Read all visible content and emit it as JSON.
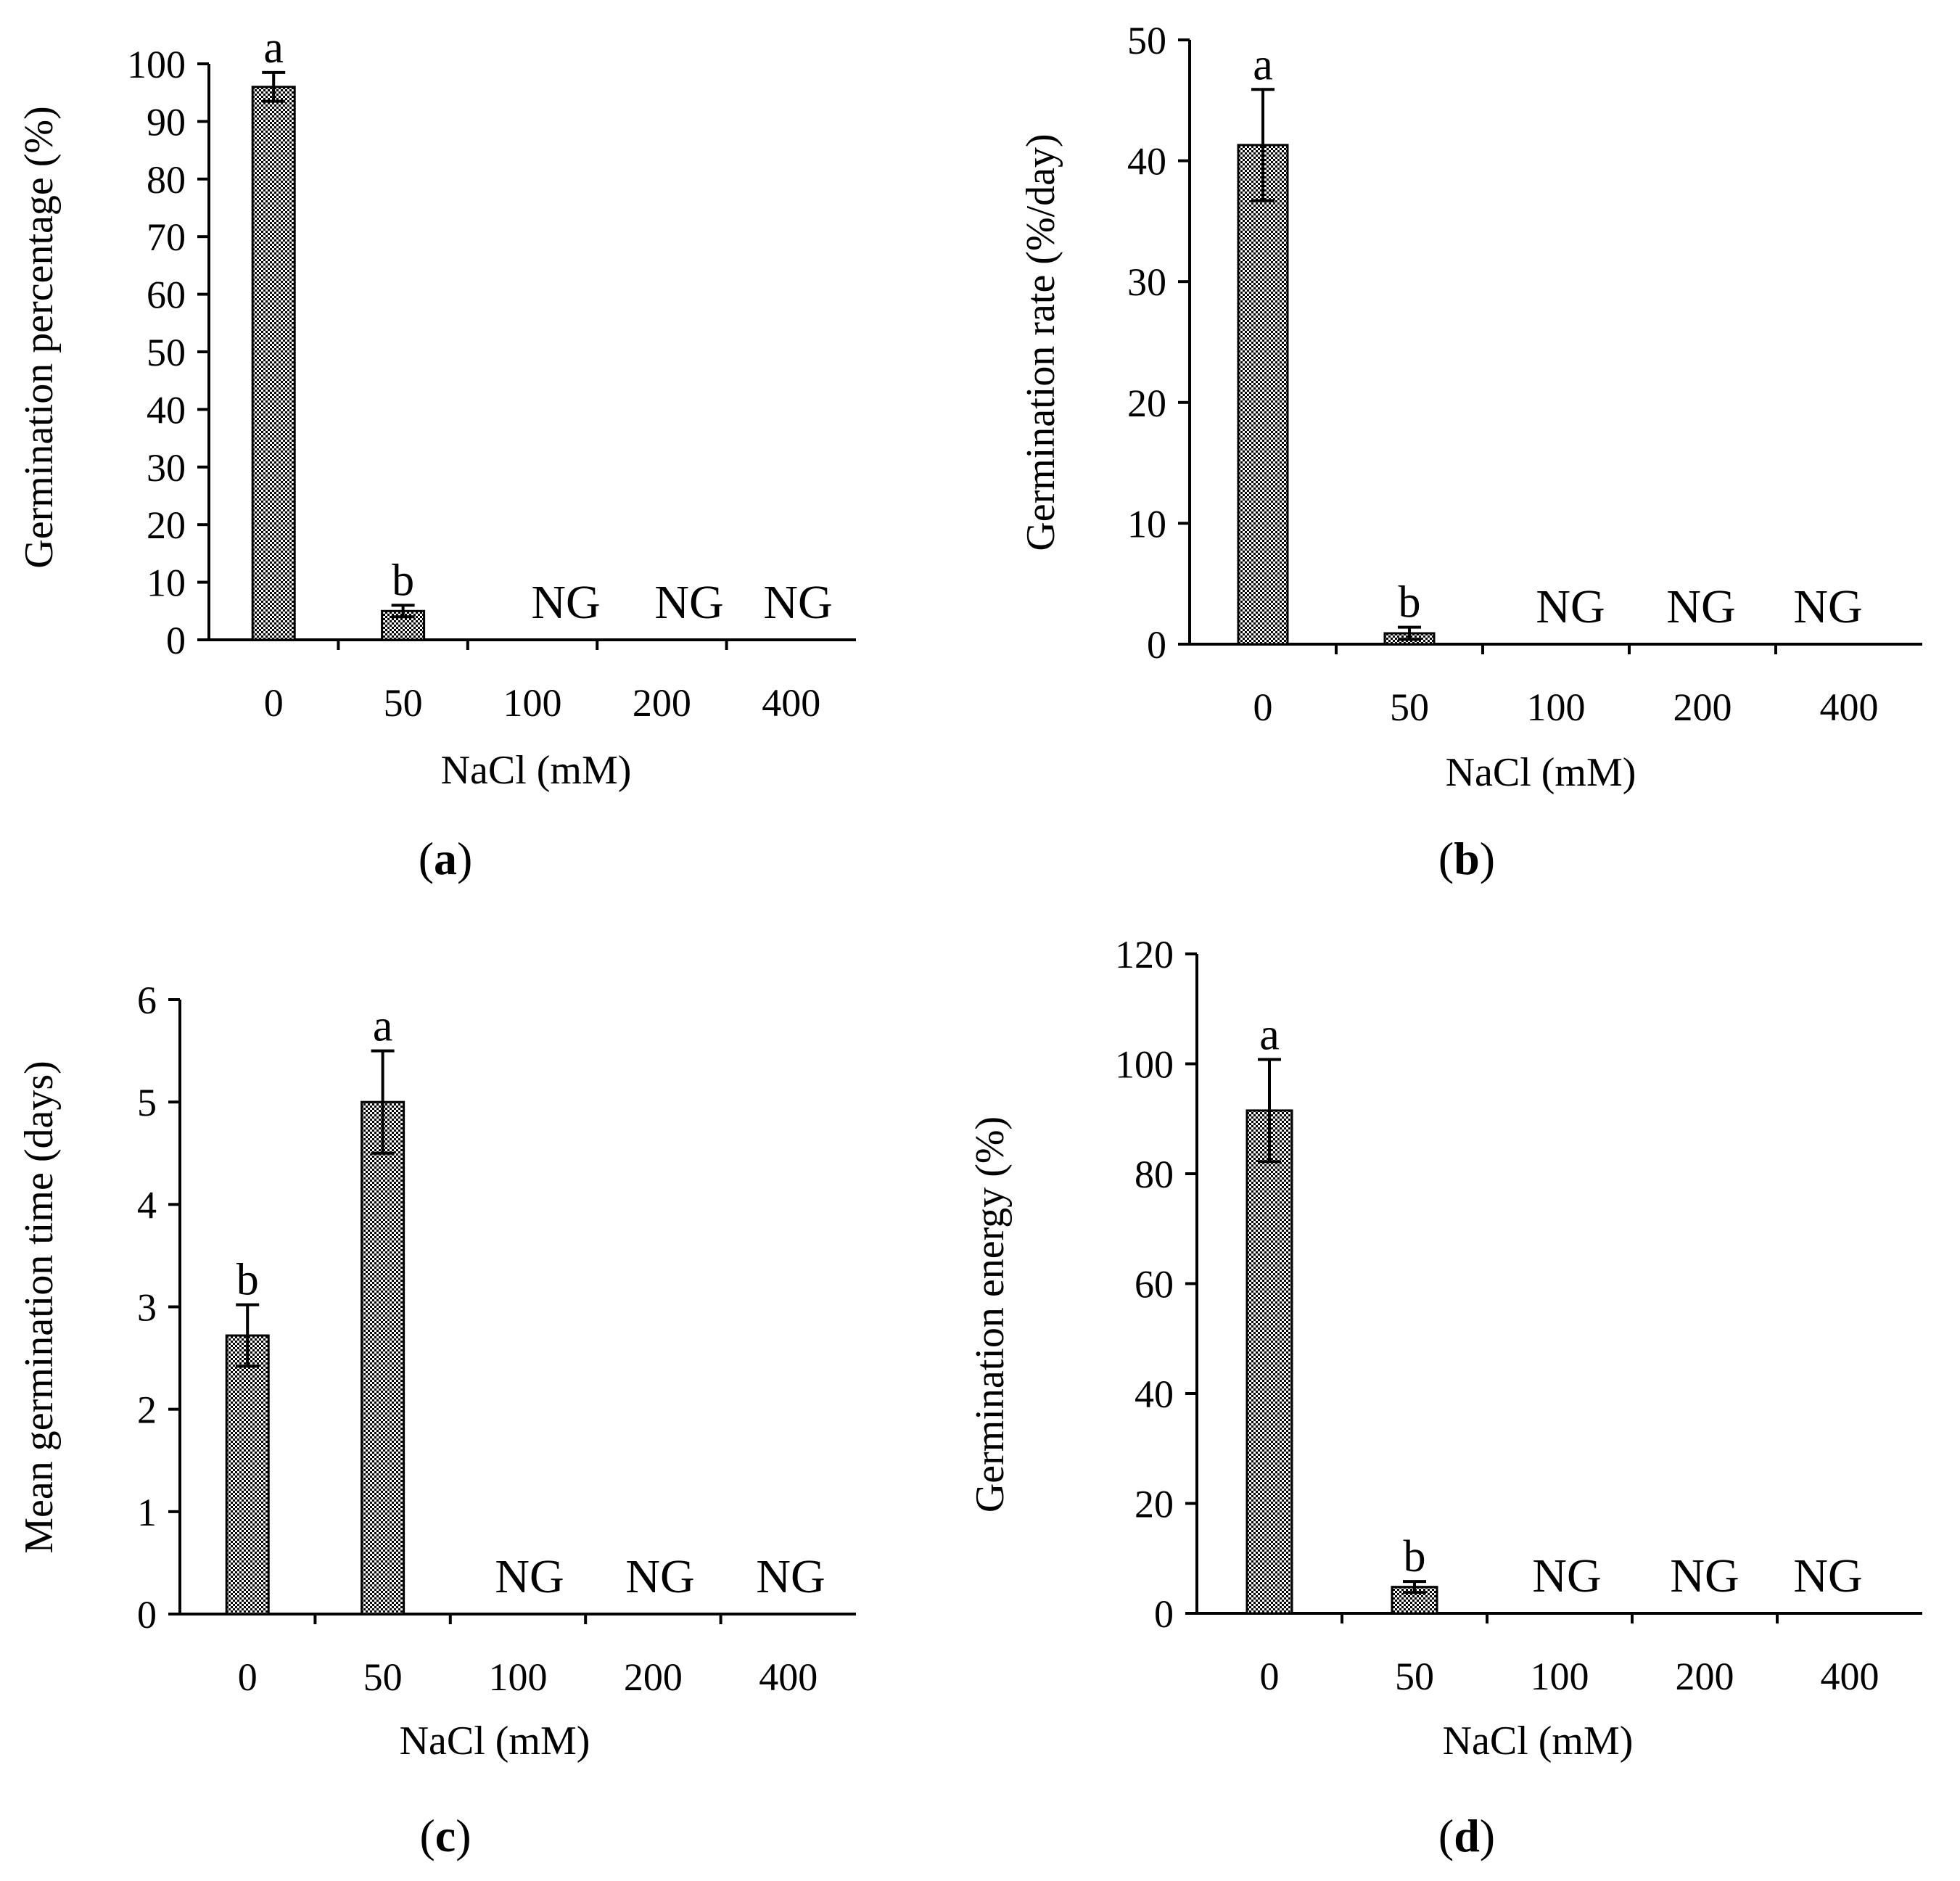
{
  "figure": {
    "colors": {
      "bar_pattern_fg": "#000000",
      "bar_pattern_bg": "#ffffff",
      "axis": "#000000"
    },
    "no_germination_label": "NG"
  },
  "chart_data": [
    {
      "id": "a",
      "panel_label": "a",
      "type": "bar",
      "categories": [
        "0",
        "50",
        "100",
        "200",
        "400"
      ],
      "values": [
        96,
        5,
        0,
        0,
        0
      ],
      "errors": [
        2.5,
        1,
        null,
        null,
        null
      ],
      "letters": [
        "a",
        "b",
        "NG",
        "NG",
        "NG"
      ],
      "xlabel": "NaCl (mM)",
      "ylabel": "Germination percentage (%)",
      "ylim": [
        0,
        100
      ],
      "yticks": [
        0,
        10,
        20,
        30,
        40,
        50,
        60,
        70,
        80,
        90,
        100
      ]
    },
    {
      "id": "b",
      "panel_label": "b",
      "type": "bar",
      "categories": [
        "0",
        "50",
        "100",
        "200",
        "400"
      ],
      "values": [
        41.3,
        0.9,
        0,
        0,
        0
      ],
      "errors": [
        4.6,
        0.5,
        null,
        null,
        null
      ],
      "letters": [
        "a",
        "b",
        "NG",
        "NG",
        "NG"
      ],
      "xlabel": "NaCl (mM)",
      "ylabel": "Germination rate (%/day)",
      "ylim": [
        0,
        50
      ],
      "yticks": [
        0,
        10,
        20,
        30,
        40,
        50
      ]
    },
    {
      "id": "c",
      "panel_label": "c",
      "type": "bar",
      "categories": [
        "0",
        "50",
        "100",
        "200",
        "400"
      ],
      "values": [
        2.72,
        5.0,
        0,
        0,
        0
      ],
      "errors": [
        0.3,
        0.5,
        null,
        null,
        null
      ],
      "letters": [
        "b",
        "a",
        "NG",
        "NG",
        "NG"
      ],
      "xlabel": "NaCl (mM)",
      "ylabel": "Mean germination time (days)",
      "ylim": [
        0,
        6
      ],
      "yticks": [
        0,
        1,
        2,
        3,
        4,
        5,
        6
      ]
    },
    {
      "id": "d",
      "panel_label": "d",
      "type": "bar",
      "categories": [
        "0",
        "50",
        "100",
        "200",
        "400"
      ],
      "values": [
        91.5,
        4.8,
        0,
        0,
        0
      ],
      "errors": [
        9.3,
        1,
        null,
        null,
        null
      ],
      "letters": [
        "a",
        "b",
        "NG",
        "NG",
        "NG"
      ],
      "xlabel": "NaCl (mM)",
      "ylabel": "Germination energy (%)",
      "ylim": [
        0,
        120
      ],
      "yticks": [
        0,
        20,
        40,
        60,
        80,
        100,
        120
      ]
    }
  ]
}
